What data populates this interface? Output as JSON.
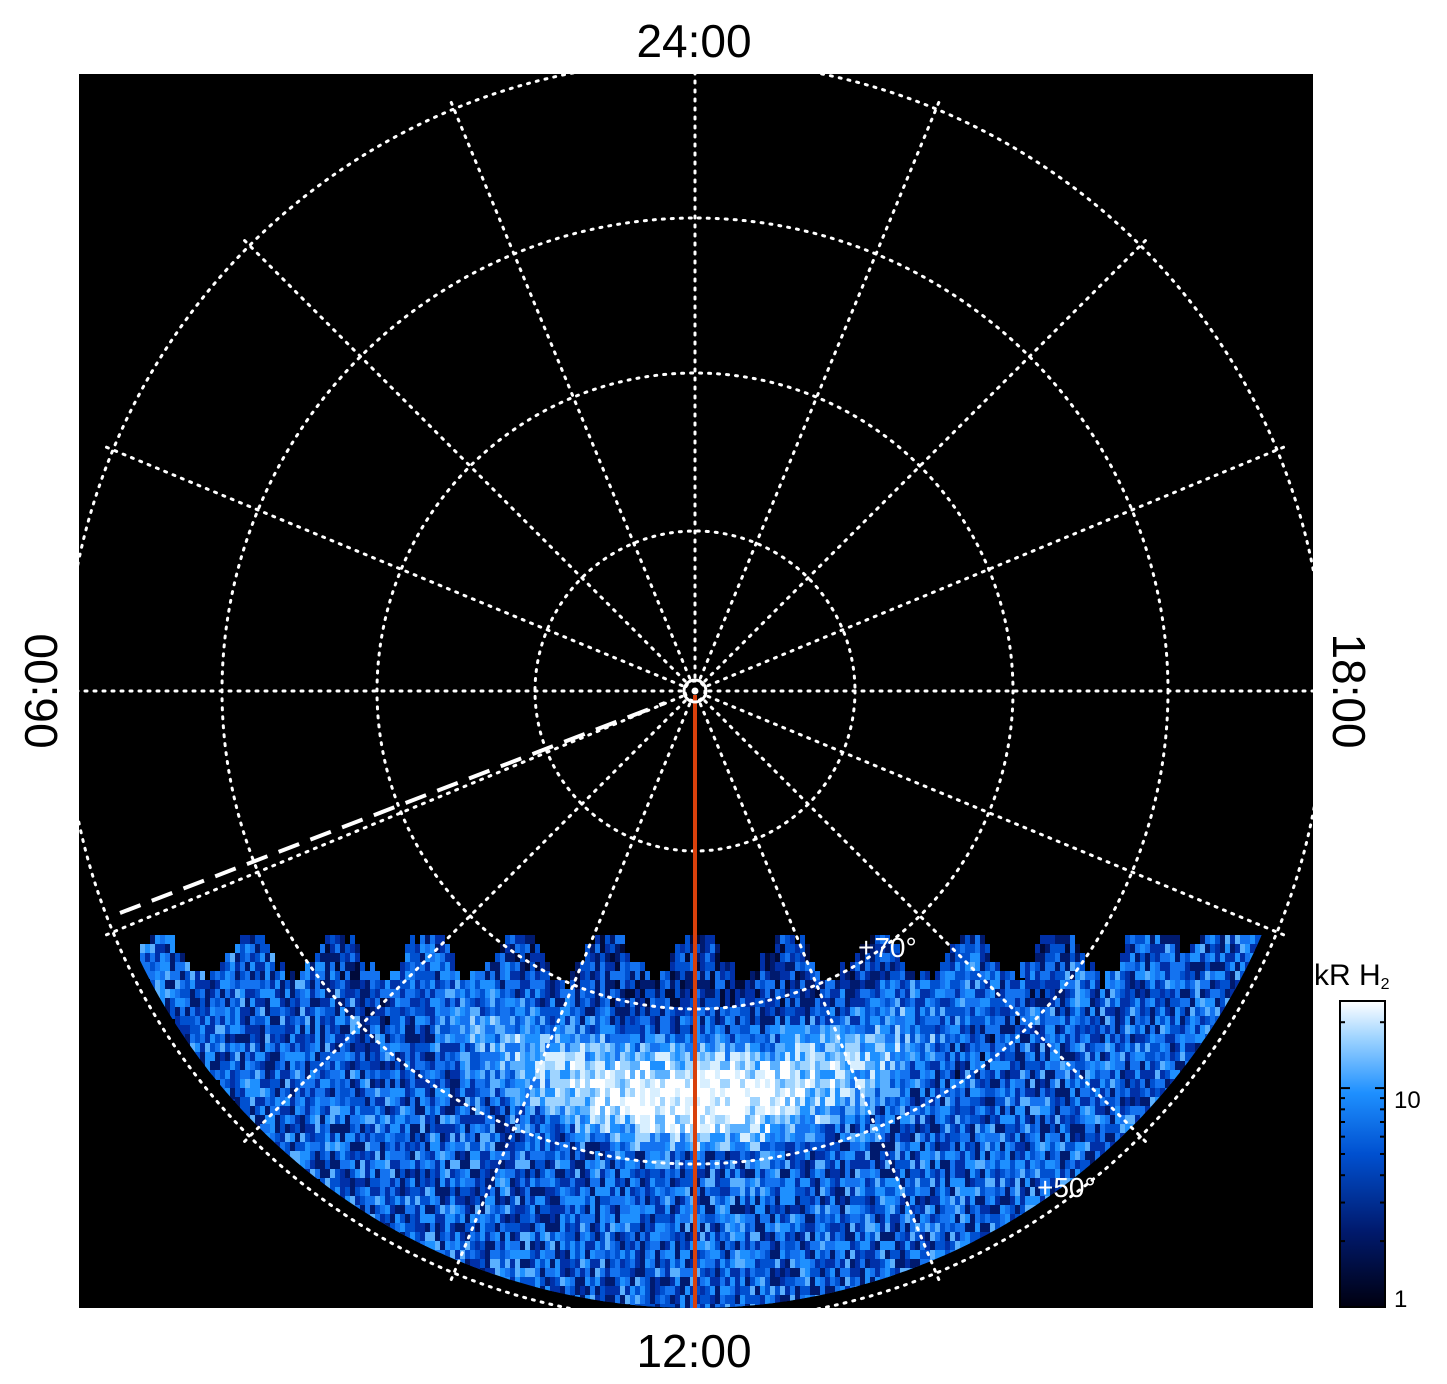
{
  "local_time_labels": {
    "top": "24:00",
    "bottom": "12:00",
    "left": "06:00",
    "right": "18:00"
  },
  "latitude_labels": [
    "+70°",
    "+50°"
  ],
  "colorbar": {
    "title_main": "kR H",
    "title_sub": "2",
    "tick_labels": [
      "10",
      "1"
    ],
    "scale": "log",
    "colors": [
      "#000010",
      "#001a6e",
      "#0050d0",
      "#1e90ff",
      "#9fd4ff",
      "#ffffff"
    ]
  },
  "plot": {
    "background": "#000000",
    "grid_color": "#ffffff",
    "meridian_color": "#d9400b",
    "grid_circles_deg": [
      90,
      80,
      70,
      60,
      50
    ],
    "meridian_spacing_hours": 1.5
  }
}
